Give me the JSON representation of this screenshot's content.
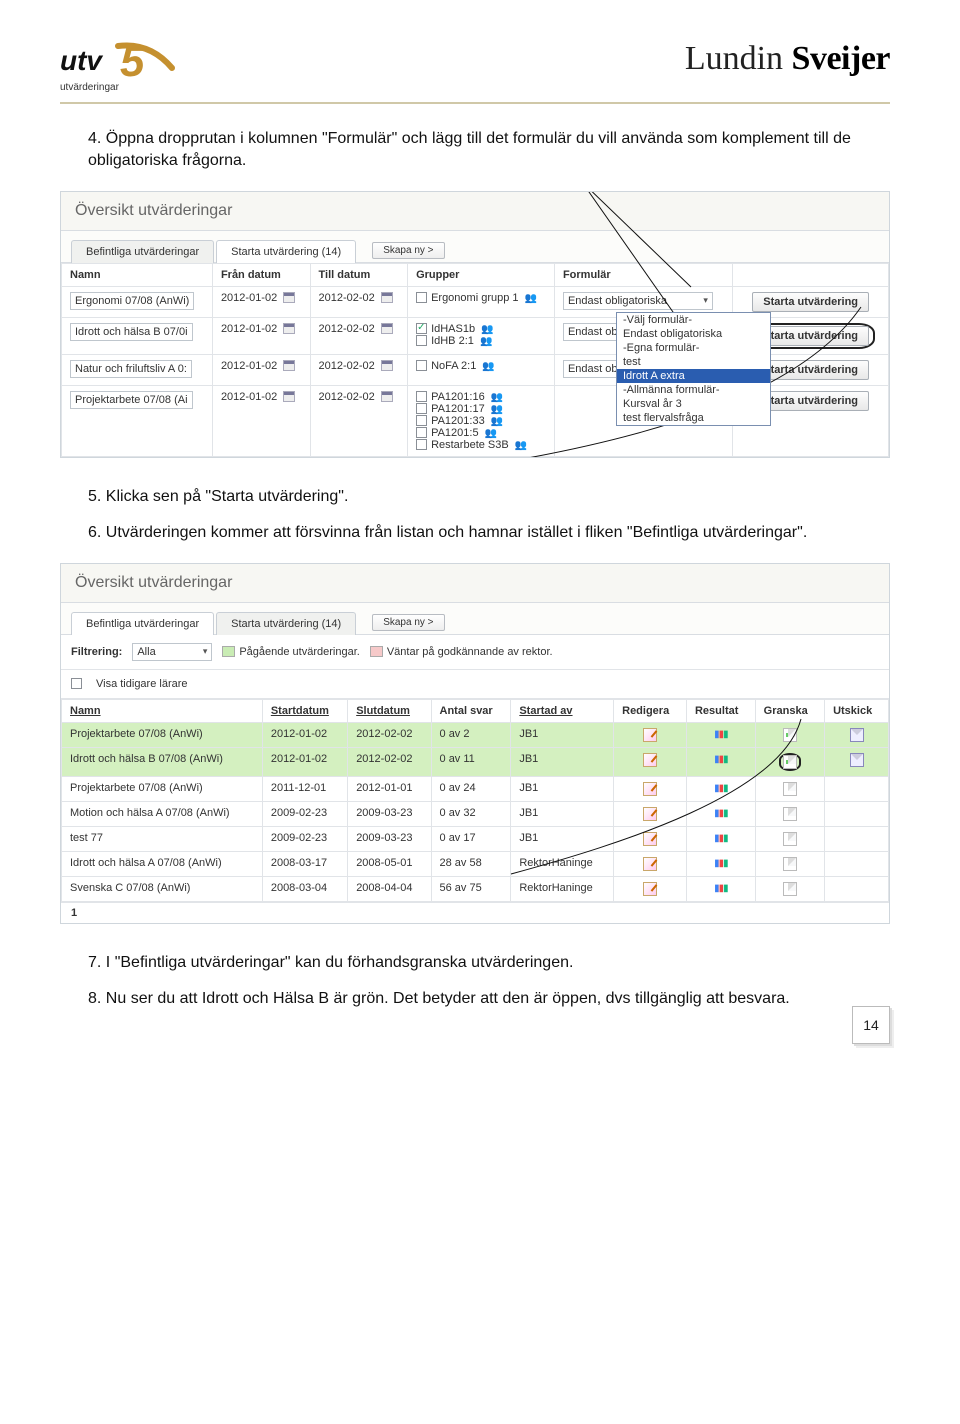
{
  "header": {
    "logo1_alt": "utv5 utvärderingar",
    "logo2_text": [
      "Lundin ",
      "Sveijer"
    ]
  },
  "steps_top": [
    {
      "num": "4",
      "text": "Öppna dropprutan i kolumnen \"Formulär\" och lägg till det formulär du vill använda som komplement till de obligatoriska frågorna."
    }
  ],
  "steps_mid": [
    {
      "num": "5",
      "text": "Klicka sen på \"Starta utvärdering\"."
    },
    {
      "num": "6",
      "text": "Utvärderingen kommer att försvinna från listan och hamnar istället i fliken \"Befintliga utvärderingar\"."
    }
  ],
  "steps_bot": [
    {
      "num": "7",
      "text": "I \"Befintliga utvärderingar\" kan du förhandsgranska utvärderingen."
    },
    {
      "num": "8",
      "text": "Nu ser du att Idrott och Hälsa B är grön. Det betyder att den är öppen, dvs tillgänglig att besvara."
    }
  ],
  "ss1": {
    "title": "Översikt utvärderingar",
    "tabs": [
      "Befintliga utvärderingar",
      "Starta utvärdering (14)"
    ],
    "skapa": "Skapa ny >",
    "cols": [
      "Namn",
      "Från datum",
      "Till datum",
      "Grupper",
      "Formulär",
      ""
    ],
    "rows": [
      {
        "namn": "Ergonomi 07/08 (AnWi)",
        "fran": "2012-01-02",
        "till": "2012-02-02",
        "grupper": [
          {
            "checked": false,
            "label": "Ergonomi grupp 1"
          }
        ],
        "formular": "Endast obligatoriska",
        "btn": "Starta utvärdering"
      },
      {
        "namn": "Idrott och hälsa B 07/0i",
        "fran": "2012-01-02",
        "till": "2012-02-02",
        "grupper": [
          {
            "checked": true,
            "label": "IdHAS1b"
          },
          {
            "checked": false,
            "label": "IdHB 2:1"
          }
        ],
        "formular": "Endast obligatoriska",
        "btn": "Starta utvärdering",
        "circled": true,
        "dropdown": true
      },
      {
        "namn": "Natur och friluftsliv A 0:",
        "fran": "2012-01-02",
        "till": "2012-02-02",
        "grupper": [
          {
            "checked": false,
            "label": "NoFA 2:1"
          }
        ],
        "formular": "Endast obligatoriska",
        "btn": "Starta utvärdering"
      },
      {
        "namn": "Projektarbete 07/08 (Ai",
        "fran": "2012-01-02",
        "till": "2012-02-02",
        "grupper": [
          {
            "checked": false,
            "label": "PA1201:16"
          },
          {
            "checked": false,
            "label": "PA1201:17"
          },
          {
            "checked": false,
            "label": "PA1201:33"
          },
          {
            "checked": false,
            "label": "PA1201:5"
          },
          {
            "checked": false,
            "label": "Restarbete S3B"
          }
        ],
        "formular": "",
        "btn": "Starta utvärdering"
      }
    ],
    "dropdown_items": [
      "-Välj formulär-",
      "Endast obligatoriska",
      "-Egna formulär-",
      "test",
      "Idrott A extra",
      "-Allmänna formulär-",
      "Kursval år 3",
      "test flervalsfråga"
    ],
    "dropdown_highlight": "Idrott A extra"
  },
  "ss2": {
    "title": "Översikt utvärderingar",
    "tabs": [
      "Befintliga utvärderingar",
      "Starta utvärdering (14)"
    ],
    "skapa": "Skapa ny >",
    "filter_label": "Filtrering:",
    "filter_value": "Alla",
    "legend1": "Pågående utvärderingar.",
    "legend2": "Väntar på godkännande av rektor.",
    "visa_tidigare": "Visa tidigare lärare",
    "cols": [
      "Namn",
      "Startdatum",
      "Slutdatum",
      "Antal svar",
      "Startad av",
      "Redigera",
      "Resultat",
      "Granska",
      "Utskick"
    ],
    "rows": [
      {
        "green": true,
        "namn": "Projektarbete 07/08 (AnWi)",
        "start": "2012-01-02",
        "slut": "2012-02-02",
        "antal": "0 av 2",
        "av": "JB1",
        "mail": true,
        "doc_green": true
      },
      {
        "green": true,
        "namn": "Idrott och hälsa B 07/08 (AnWi)",
        "start": "2012-01-02",
        "slut": "2012-02-02",
        "antal": "0 av 11",
        "av": "JB1",
        "mail": true,
        "doc_green": true,
        "circled": true
      },
      {
        "namn": "Projektarbete 07/08 (AnWi)",
        "start": "2011-12-01",
        "slut": "2012-01-01",
        "antal": "0 av 24",
        "av": "JB1"
      },
      {
        "namn": "Motion och hälsa A 07/08 (AnWi)",
        "start": "2009-02-23",
        "slut": "2009-03-23",
        "antal": "0 av 32",
        "av": "JB1"
      },
      {
        "namn": "test 77",
        "start": "2009-02-23",
        "slut": "2009-03-23",
        "antal": "0 av 17",
        "av": "JB1"
      },
      {
        "namn": "Idrott och hälsa A 07/08 (AnWi)",
        "start": "2008-03-17",
        "slut": "2008-05-01",
        "antal": "28 av 58",
        "av": "RektorHaninge"
      },
      {
        "namn": "Svenska C 07/08 (AnWi)",
        "start": "2008-03-04",
        "slut": "2008-04-04",
        "antal": "56 av 75",
        "av": "RektorHaninge"
      }
    ],
    "pager": "1"
  },
  "page_number": "14",
  "colors": {
    "row_green": "#d4f0c0",
    "highlight_blue": "#2a5db0",
    "border": "#cfd6dc",
    "header_underline": "#d0c8a8"
  }
}
